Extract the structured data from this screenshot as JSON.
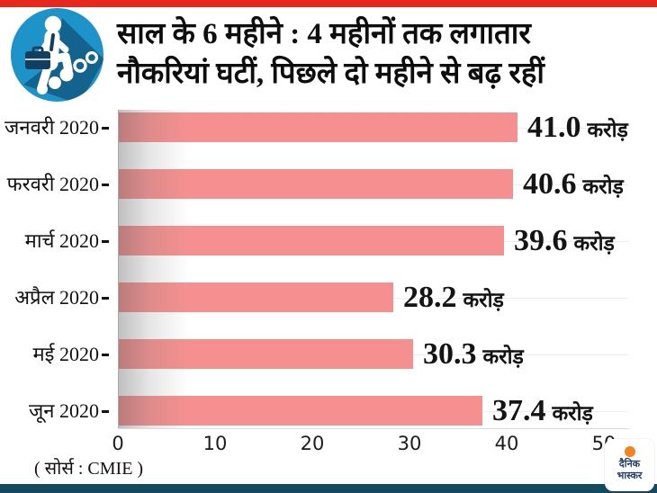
{
  "page": {
    "accent_top_color": "#e6281f",
    "accent_bottom_color": "#15495e"
  },
  "header": {
    "title_line1": "साल के 6 महीने : 4 महीनों तक लगातार",
    "title_line2": "नौकरियां घटीं, पिछले दो महीने से बढ़ रहीं"
  },
  "icon": {
    "semantic": "businessman-climbing-steps-icon",
    "circle_color": "#1e93c9",
    "shadow_color": "#135e87",
    "briefcase_color": "#123f60"
  },
  "chart_data": {
    "type": "bar",
    "orientation": "horizontal",
    "title": "साल के 6 महीने : 4 महीनों तक लगातार नौकरियां घटीं, पिछले दो महीने से बढ़ रहीं",
    "categories": [
      "जनवरी 2020",
      "फरवरी 2020",
      "मार्च 2020",
      "अप्रैल 2020",
      "मई 2020",
      "जून 2020"
    ],
    "values": [
      41.0,
      40.6,
      39.6,
      28.2,
      30.3,
      37.4
    ],
    "value_labels": [
      "41.0",
      "40.6",
      "39.6",
      "28.2",
      "30.3",
      "37.4"
    ],
    "unit": "करोड़",
    "x_ticks": [
      "0",
      "10",
      "20",
      "30",
      "40",
      "50"
    ],
    "xlim": [
      0,
      50
    ],
    "bar_color": "#f69090",
    "grid": "faint horizontal line per row",
    "legend": "none",
    "source": "( सोर्स : CMIE )"
  },
  "footer": {
    "source_label": "( सोर्स : CMIE )",
    "logo_line1": "दैनिक",
    "logo_line2": "भास्कर",
    "logo_accent_color": "#f5821f"
  }
}
